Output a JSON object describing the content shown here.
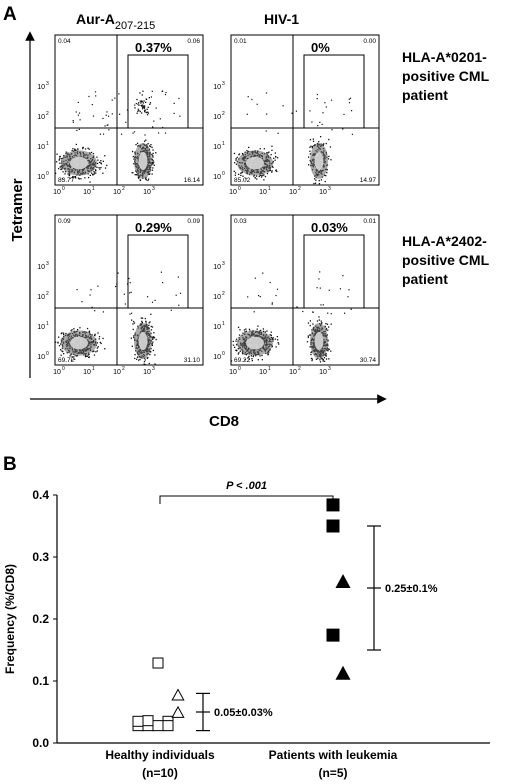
{
  "panel_a": {
    "letter": "A",
    "column_headers": [
      {
        "main": "Aur-A",
        "sub": "207-215"
      },
      {
        "main": "HIV-1",
        "sub": ""
      }
    ],
    "y_axis_label": "Tetramer",
    "x_axis_label": "CD8",
    "row_labels": [
      [
        "HLA-A*0201-",
        "positive CML",
        "patient"
      ],
      [
        "HLA-A*2402-",
        "positive CML",
        "patient"
      ]
    ],
    "tick_labels": [
      "10",
      "10",
      "10",
      "10"
    ],
    "tick_exponents": [
      "0",
      "1",
      "2",
      "3"
    ],
    "plots": [
      {
        "gate_label": "0.37%",
        "ul": "0.04",
        "ur": "0.06",
        "ll": "83.77",
        "lr": "16.14"
      },
      {
        "gate_label": "0%",
        "ul": "0.01",
        "ur": "0.00",
        "ll": "85.02",
        "lr": "14.97"
      },
      {
        "gate_label": "0.29%",
        "ul": "0.09",
        "ur": "0.09",
        "ll": "69.72",
        "lr": "31.10"
      },
      {
        "gate_label": "0.03%",
        "ul": "0.03",
        "ur": "0.01",
        "ll": "69.22",
        "lr": "30.74"
      }
    ]
  },
  "panel_b": {
    "letter": "B",
    "p_value": "P < .001",
    "chart_data": {
      "type": "scatter",
      "ylabel": "Frequency (%/CD8)",
      "ylim": [
        0,
        0.4
      ],
      "yticks": [
        "0.0",
        "0.1",
        "0.2",
        "0.3",
        "0.4"
      ],
      "categories": [
        [
          "Healthy individuals",
          "(n=10)"
        ],
        [
          "Patients with leukemia",
          "(n=5)"
        ]
      ],
      "groups": [
        {
          "points": [
            {
              "y": 0.129,
              "marker": "open-square",
              "dx": 0
            },
            {
              "y": 0.028,
              "marker": "open-square",
              "dx": -2
            },
            {
              "y": 0.035,
              "marker": "open-square",
              "dx": -2
            },
            {
              "y": 0.028,
              "marker": "open-square",
              "dx": -1
            },
            {
              "y": 0.036,
              "marker": "open-square",
              "dx": -1
            },
            {
              "y": 0.028,
              "marker": "open-square",
              "dx": 0
            },
            {
              "y": 0.035,
              "marker": "open-square",
              "dx": 1
            },
            {
              "y": 0.028,
              "marker": "open-square",
              "dx": 1
            },
            {
              "y": 0.077,
              "marker": "open-triangle",
              "dx": 2
            },
            {
              "y": 0.049,
              "marker": "open-triangle",
              "dx": 2
            }
          ],
          "mean": 0.05,
          "sd": 0.03,
          "stat_label": "0.05±0.03%"
        },
        {
          "points": [
            {
              "y": 0.384,
              "marker": "filled-square",
              "dx": 0
            },
            {
              "y": 0.35,
              "marker": "filled-square",
              "dx": 0
            },
            {
              "y": 0.174,
              "marker": "filled-square",
              "dx": 0
            },
            {
              "y": 0.26,
              "marker": "filled-triangle",
              "dx": 1
            },
            {
              "y": 0.112,
              "marker": "filled-triangle",
              "dx": 1
            }
          ],
          "mean": 0.25,
          "sd": 0.1,
          "stat_label": "0.25±0.1%"
        }
      ]
    }
  }
}
